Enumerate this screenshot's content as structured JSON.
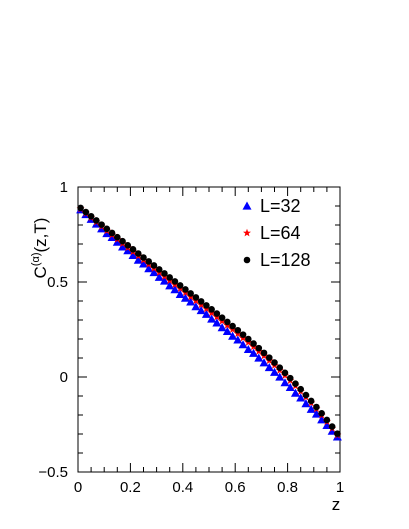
{
  "chart_data": {
    "type": "scatter",
    "title": "",
    "xlabel": "z",
    "ylabel_base": "C",
    "ylabel_sup": "(α)",
    "ylabel_args": "(z,T)",
    "xlim": [
      0,
      1
    ],
    "ylim": [
      -0.5,
      1
    ],
    "grid": false,
    "legend_position": "top-right",
    "xticks": [
      0,
      0.2,
      0.4,
      0.6,
      0.8,
      1
    ],
    "xtick_labels": [
      "0",
      "0.2",
      "0.4",
      "0.6",
      "0.8",
      "1"
    ],
    "yticks": [
      -0.5,
      0,
      0.5,
      1
    ],
    "ytick_labels": [
      "−0.5",
      "0",
      "0.5",
      "1"
    ],
    "series": [
      {
        "name": "L=32",
        "marker": "triangle",
        "color": "#0000ff",
        "x": [
          0.01,
          0.03,
          0.05,
          0.07,
          0.09,
          0.11,
          0.13,
          0.15,
          0.17,
          0.19,
          0.21,
          0.23,
          0.25,
          0.27,
          0.29,
          0.31,
          0.33,
          0.35,
          0.37,
          0.39,
          0.41,
          0.43,
          0.45,
          0.47,
          0.49,
          0.51,
          0.53,
          0.55,
          0.57,
          0.59,
          0.61,
          0.63,
          0.65,
          0.67,
          0.69,
          0.71,
          0.73,
          0.75,
          0.77,
          0.79,
          0.81,
          0.83,
          0.85,
          0.87,
          0.89,
          0.91,
          0.93,
          0.95,
          0.97,
          0.99
        ],
        "y": [
          0.88,
          0.855,
          0.83,
          0.805,
          0.78,
          0.755,
          0.735,
          0.71,
          0.685,
          0.665,
          0.64,
          0.615,
          0.595,
          0.57,
          0.55,
          0.525,
          0.505,
          0.48,
          0.46,
          0.435,
          0.415,
          0.395,
          0.37,
          0.35,
          0.33,
          0.305,
          0.285,
          0.26,
          0.24,
          0.215,
          0.195,
          0.17,
          0.145,
          0.125,
          0.1,
          0.075,
          0.05,
          0.025,
          0.0,
          -0.03,
          -0.055,
          -0.085,
          -0.11,
          -0.14,
          -0.17,
          -0.195,
          -0.225,
          -0.255,
          -0.285,
          -0.315
        ]
      },
      {
        "name": "L=64",
        "marker": "star",
        "color": "#ff0000",
        "x": [
          0.01,
          0.03,
          0.05,
          0.07,
          0.09,
          0.11,
          0.13,
          0.15,
          0.17,
          0.19,
          0.21,
          0.23,
          0.25,
          0.27,
          0.29,
          0.31,
          0.33,
          0.35,
          0.37,
          0.39,
          0.41,
          0.43,
          0.45,
          0.47,
          0.49,
          0.51,
          0.53,
          0.55,
          0.57,
          0.59,
          0.61,
          0.63,
          0.65,
          0.67,
          0.69,
          0.71,
          0.73,
          0.75,
          0.77,
          0.79,
          0.81,
          0.83,
          0.85,
          0.87,
          0.89,
          0.91,
          0.93,
          0.95,
          0.97,
          0.99
        ],
        "y": [
          0.885,
          0.862,
          0.839,
          0.816,
          0.793,
          0.77,
          0.748,
          0.725,
          0.703,
          0.681,
          0.659,
          0.637,
          0.615,
          0.593,
          0.572,
          0.55,
          0.529,
          0.507,
          0.486,
          0.465,
          0.444,
          0.422,
          0.401,
          0.38,
          0.359,
          0.337,
          0.316,
          0.294,
          0.272,
          0.25,
          0.228,
          0.205,
          0.182,
          0.159,
          0.135,
          0.111,
          0.086,
          0.061,
          0.035,
          0.008,
          -0.019,
          -0.047,
          -0.076,
          -0.106,
          -0.137,
          -0.168,
          -0.201,
          -0.235,
          -0.27,
          -0.306
        ]
      },
      {
        "name": "L=128",
        "marker": "circle",
        "color": "#000000",
        "x": [
          0.01,
          0.03,
          0.05,
          0.07,
          0.09,
          0.11,
          0.13,
          0.15,
          0.17,
          0.19,
          0.21,
          0.23,
          0.25,
          0.27,
          0.29,
          0.31,
          0.33,
          0.35,
          0.37,
          0.39,
          0.41,
          0.43,
          0.45,
          0.47,
          0.49,
          0.51,
          0.53,
          0.55,
          0.57,
          0.59,
          0.61,
          0.63,
          0.65,
          0.67,
          0.69,
          0.71,
          0.73,
          0.75,
          0.77,
          0.79,
          0.81,
          0.83,
          0.85,
          0.87,
          0.89,
          0.91,
          0.93,
          0.95,
          0.97,
          0.99
        ],
        "y": [
          0.89,
          0.868,
          0.846,
          0.824,
          0.802,
          0.78,
          0.758,
          0.736,
          0.715,
          0.693,
          0.672,
          0.65,
          0.629,
          0.608,
          0.587,
          0.566,
          0.545,
          0.524,
          0.503,
          0.482,
          0.461,
          0.44,
          0.419,
          0.398,
          0.377,
          0.356,
          0.334,
          0.312,
          0.29,
          0.268,
          0.246,
          0.223,
          0.2,
          0.176,
          0.152,
          0.127,
          0.102,
          0.076,
          0.049,
          0.022,
          -0.006,
          -0.035,
          -0.064,
          -0.095,
          -0.126,
          -0.158,
          -0.191,
          -0.226,
          -0.261,
          -0.298
        ]
      }
    ]
  }
}
